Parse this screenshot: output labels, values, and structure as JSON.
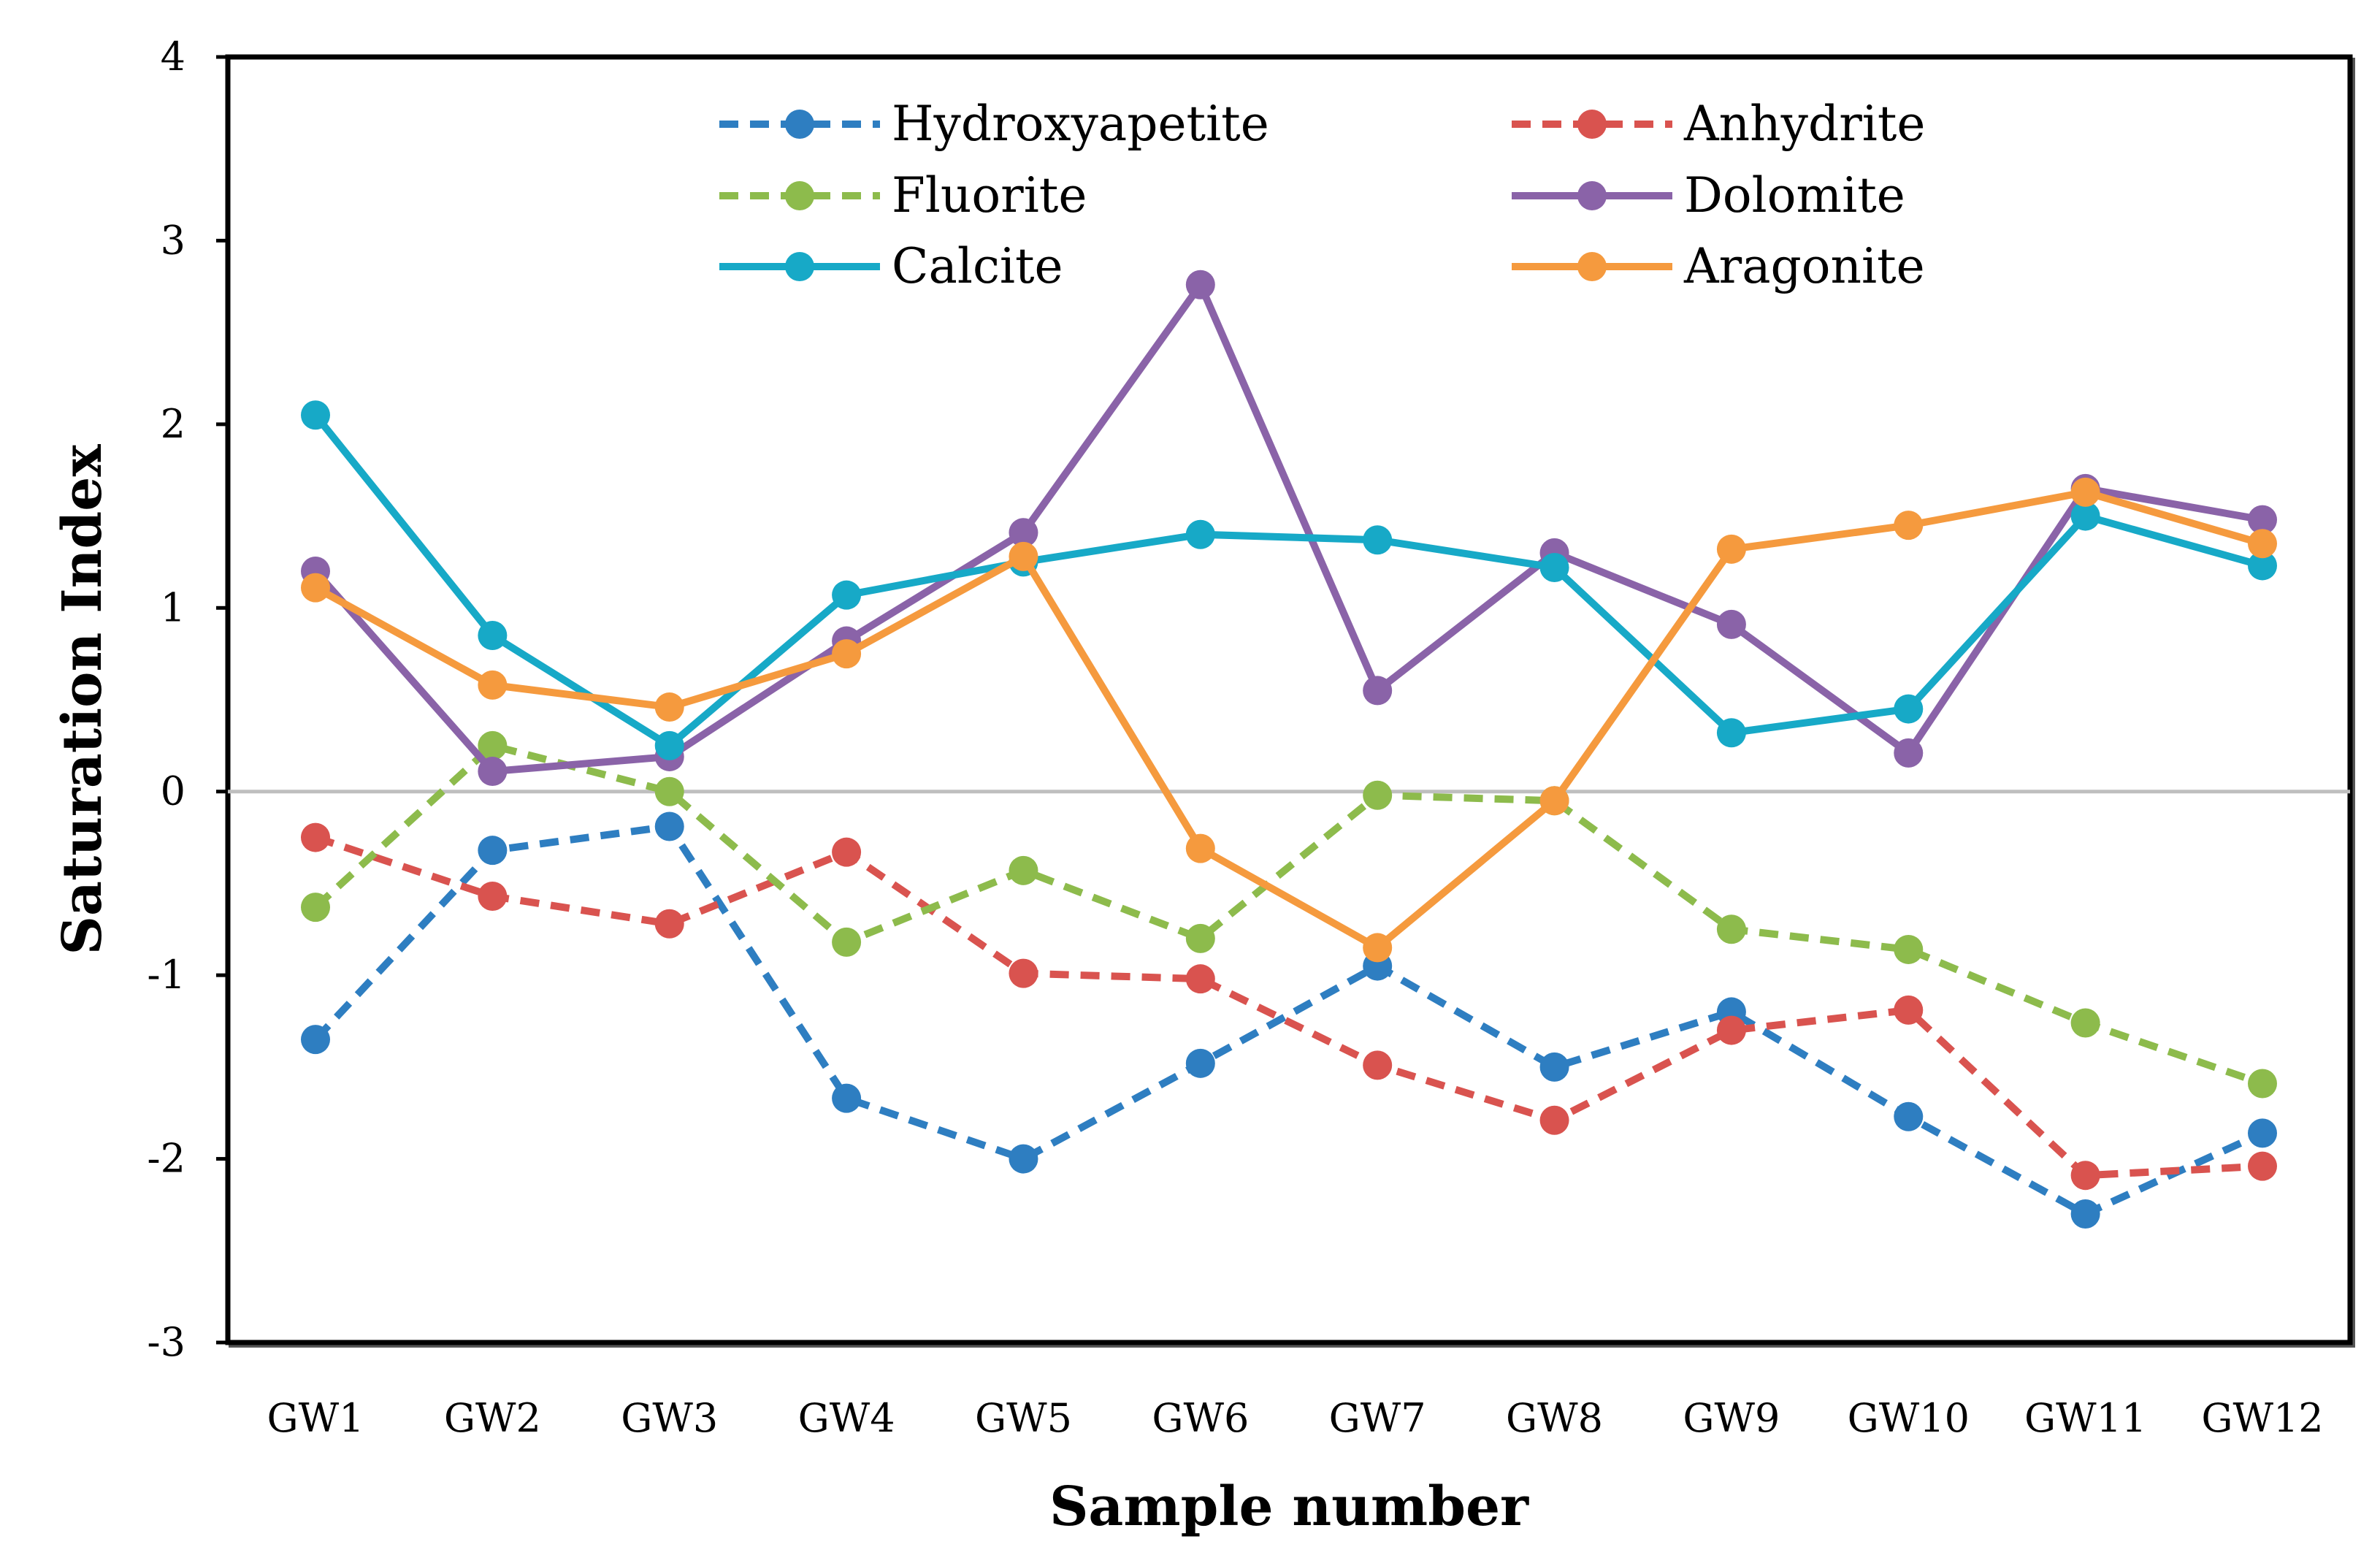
{
  "chart_data": {
    "type": "line",
    "title": "",
    "xlabel": "Sample number",
    "ylabel": "Saturation Index",
    "ylim": [
      -3,
      4
    ],
    "yticks": [
      "-3",
      "-2",
      "-1",
      "0",
      "1",
      "2",
      "3",
      "4"
    ],
    "grid": false,
    "zero_line": true,
    "legend_position": "top",
    "categories": [
      "GW1",
      "GW2",
      "GW3",
      "GW4",
      "GW5",
      "GW6",
      "GW7",
      "GW8",
      "GW9",
      "GW10",
      "GW11",
      "GW12"
    ],
    "series": [
      {
        "name": "Hydroxyapetite",
        "color": "#2E7EC1",
        "dashed": true,
        "values": [
          -1.35,
          -0.32,
          -0.19,
          -1.67,
          -2.0,
          -1.48,
          -0.95,
          -1.5,
          -1.2,
          -1.77,
          -2.3,
          -1.86
        ]
      },
      {
        "name": "Anhydrite",
        "color": "#D9534F",
        "dashed": true,
        "values": [
          -0.25,
          -0.57,
          -0.72,
          -0.33,
          -0.99,
          -1.02,
          -1.49,
          -1.79,
          -1.3,
          -1.19,
          -2.09,
          -2.04
        ]
      },
      {
        "name": "Fluorite",
        "color": "#8DBB4C",
        "dashed": true,
        "values": [
          -0.63,
          0.25,
          0.0,
          -0.82,
          -0.43,
          -0.8,
          -0.02,
          -0.05,
          -0.75,
          -0.86,
          -1.26,
          -1.59
        ]
      },
      {
        "name": "Dolomite",
        "color": "#8A63A8",
        "dashed": false,
        "values": [
          1.2,
          0.11,
          0.19,
          0.82,
          1.41,
          2.76,
          0.55,
          1.3,
          0.91,
          0.21,
          1.65,
          1.48
        ]
      },
      {
        "name": "Calcite",
        "color": "#17A9C7",
        "dashed": false,
        "values": [
          2.05,
          0.85,
          0.25,
          1.07,
          1.25,
          1.4,
          1.37,
          1.22,
          0.32,
          0.45,
          1.5,
          1.23
        ]
      },
      {
        "name": "Aragonite",
        "color": "#F59A3E",
        "dashed": false,
        "values": [
          1.11,
          0.58,
          0.46,
          0.75,
          1.28,
          -0.31,
          -0.85,
          -0.05,
          1.32,
          1.45,
          1.63,
          1.35
        ]
      }
    ]
  }
}
